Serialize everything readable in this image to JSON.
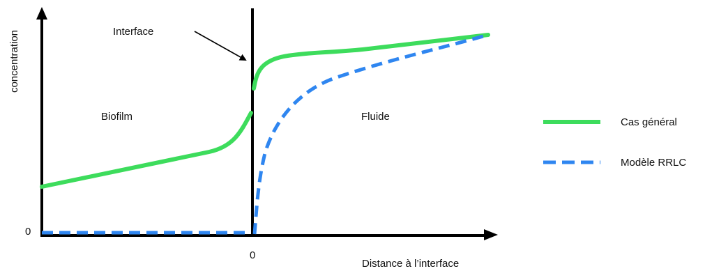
{
  "diagram": {
    "y_axis_label": "concentration",
    "x_axis_label": "Distance à l’interface",
    "origin_y_label": "0",
    "origin_x_label": "0",
    "interface_label": "Interface",
    "region_left_label": "Biofilm",
    "region_right_label": "Fluide"
  },
  "legend": {
    "items": [
      {
        "label": "Cas général",
        "color": "#3ddc5c",
        "style": "solid"
      },
      {
        "label": "Modèle RRLC",
        "color": "#2f86f0",
        "style": "dashed"
      }
    ]
  },
  "colors": {
    "axis": "#000000",
    "general_case": "#3ddc5c",
    "rrlc_model": "#2f86f0"
  }
}
